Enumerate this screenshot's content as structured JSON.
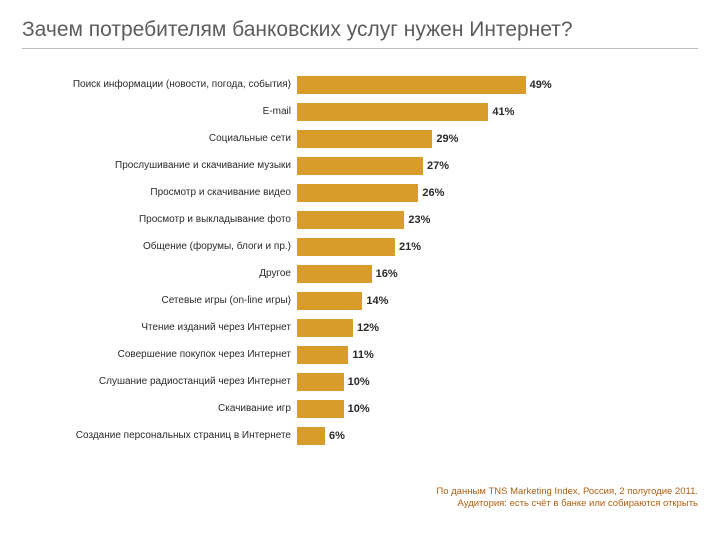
{
  "title": "Зачем потребителям банковских услуг нужен Интернет?",
  "chart": {
    "type": "bar",
    "orientation": "horizontal",
    "max_percent": 60,
    "bar_color": "#d99c2b",
    "category_fontsize": 10,
    "value_fontsize": 11,
    "value_color": "#2a2a2a",
    "background_color": "#ffffff",
    "items": [
      {
        "label": "Поиск информации (новости, погода, события)",
        "value": 49,
        "display": "49%"
      },
      {
        "label": "E-mail",
        "value": 41,
        "display": "41%"
      },
      {
        "label": "Социальные сети",
        "value": 29,
        "display": "29%"
      },
      {
        "label": "Прослушивание и скачивание музыки",
        "value": 27,
        "display": "27%"
      },
      {
        "label": "Просмотр и скачивание видео",
        "value": 26,
        "display": "26%"
      },
      {
        "label": "Просмотр и выкладывание фото",
        "value": 23,
        "display": "23%"
      },
      {
        "label": "Общение (форумы, блоги и пр.)",
        "value": 21,
        "display": "21%"
      },
      {
        "label": "Другое",
        "value": 16,
        "display": "16%"
      },
      {
        "label": "Сетевые игры (on-line игры)",
        "value": 14,
        "display": "14%"
      },
      {
        "label": "Чтение изданий через Интернет",
        "value": 12,
        "display": "12%"
      },
      {
        "label": "Совершение покупок через Интернет",
        "value": 11,
        "display": "11%"
      },
      {
        "label": "Слушание радиостанций через Интернет",
        "value": 10,
        "display": "10%"
      },
      {
        "label": "Скачивание игр",
        "value": 10,
        "display": "10%"
      },
      {
        "label": "Создание персональных страниц в Интернете",
        "value": 6,
        "display": "6%"
      }
    ]
  },
  "footnote_line1": "По данным TNS Marketing Index, Россия, 2 полугодие 2011.",
  "footnote_line2": "Аудитория: есть счёт в банке или собираются открыть"
}
